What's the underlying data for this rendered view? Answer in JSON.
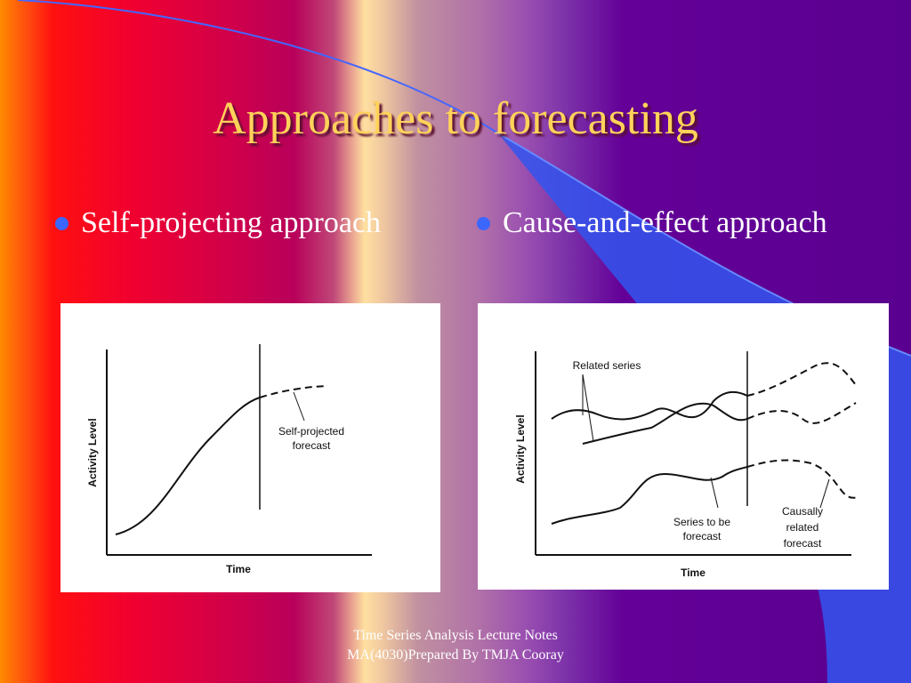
{
  "slide": {
    "title": "Approaches to forecasting",
    "bullets": [
      {
        "label": "Self-projecting approach"
      },
      {
        "label": "Cause-and-effect approach"
      }
    ],
    "footer": {
      "line1": "Time Series Analysis Lecture Notes",
      "line2": "MA(4030)Prepared By TMJA Cooray"
    },
    "colors": {
      "title": "#ffd25a",
      "bullet_dot": "#3b66ff",
      "accent_blue": "#3355ee",
      "background_left": "#ff2020",
      "background_right": "#5a0090"
    }
  },
  "diagrams": {
    "left": {
      "ylabel": "Activity Level",
      "xlabel": "Time",
      "annotation_line1": "Self-projected",
      "annotation_line2": "forecast"
    },
    "right": {
      "ylabel": "Activity Level",
      "xlabel": "Time",
      "annotation_related": "Related series",
      "annotation_series1": "Series to be",
      "annotation_series2": "forecast",
      "annotation_causal1": "Causally",
      "annotation_causal2": "related",
      "annotation_causal3": "forecast"
    }
  }
}
